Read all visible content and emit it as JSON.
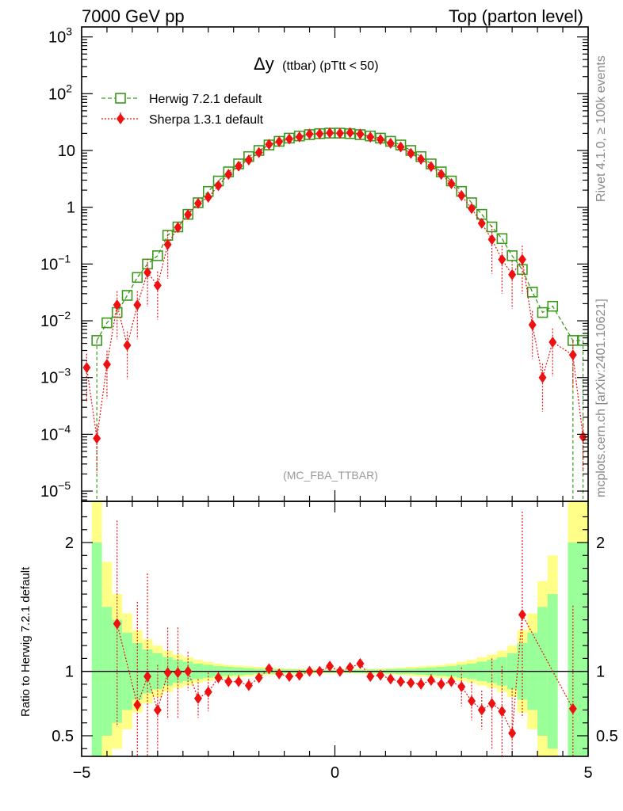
{
  "header": {
    "left": "7000 GeV pp",
    "right": "Top (parton level)"
  },
  "side_labels": {
    "rivet": "Rivet 4.1.0, ≥ 100k events",
    "mcplots": "mcplots.cern.ch [arXiv:2401.10621]"
  },
  "plot_title": {
    "main": "Δy",
    "sub": "(ttbar) (pTtt < 50)"
  },
  "analysis_label": "(MC_FBA_TTBAR)",
  "ratio_ylabel": "Ratio to Herwig 7.2.1 default",
  "legend": [
    {
      "name": "Herwig 7.2.1 default",
      "color": "#3a9a1c",
      "marker": "open-square",
      "style": "dashed"
    },
    {
      "name": "Sherpa 1.3.1 default",
      "color": "#ee1111",
      "marker": "diamond",
      "style": "dotted"
    }
  ],
  "colors": {
    "herwig": "#3a9a1c",
    "sherpa": "#ee1111",
    "band_inner": "#99ff99",
    "band_outer": "#ffff88"
  },
  "chart_data": [
    {
      "type": "line",
      "panel": "main",
      "title": "Δy (ttbar) (pTtt < 50)",
      "xlabel": "",
      "ylabel": "",
      "xlim": [
        -5,
        5
      ],
      "ylim": [
        6.6e-06,
        1500
      ],
      "yscale": "log",
      "x_ticks": [
        "-5",
        "0",
        "5"
      ],
      "y_ticks": [
        {
          "v": 1e-05,
          "label": "10",
          "exp": "−5"
        },
        {
          "v": 0.0001,
          "label": "10",
          "exp": "−4"
        },
        {
          "v": 0.001,
          "label": "10",
          "exp": "−3"
        },
        {
          "v": 0.01,
          "label": "10",
          "exp": "−2"
        },
        {
          "v": 0.1,
          "label": "10",
          "exp": "−1"
        },
        {
          "v": 1,
          "label": "1",
          "exp": ""
        },
        {
          "v": 10,
          "label": "10",
          "exp": ""
        },
        {
          "v": 100,
          "label": "10",
          "exp": "2"
        },
        {
          "v": 1000,
          "label": "10",
          "exp": "3"
        }
      ],
      "series": [
        {
          "name": "Herwig 7.2.1 default",
          "x": [
            -4.7,
            -4.5,
            -4.3,
            -4.1,
            -3.9,
            -3.7,
            -3.5,
            -3.3,
            -3.1,
            -2.9,
            -2.7,
            -2.5,
            -2.3,
            -2.1,
            -1.9,
            -1.7,
            -1.5,
            -1.3,
            -1.1,
            -0.9,
            -0.7,
            -0.5,
            -0.3,
            -0.1,
            0.1,
            0.3,
            0.5,
            0.7,
            0.9,
            1.1,
            1.3,
            1.5,
            1.7,
            1.9,
            2.1,
            2.3,
            2.5,
            2.7,
            2.9,
            3.1,
            3.3,
            3.5,
            3.7,
            3.9,
            4.1,
            4.3,
            4.7,
            4.9
          ],
          "values": [
            0.0045,
            0.0092,
            0.014,
            0.028,
            0.058,
            0.1,
            0.14,
            0.32,
            0.45,
            0.75,
            1.2,
            1.9,
            2.9,
            4.2,
            5.8,
            7.8,
            10,
            12.5,
            14.5,
            16.5,
            18,
            19,
            19.8,
            20.2,
            20.2,
            19.8,
            19,
            18,
            16.5,
            14.5,
            12.5,
            10,
            7.8,
            5.8,
            4.2,
            2.9,
            1.9,
            1.2,
            0.75,
            0.45,
            0.28,
            0.14,
            0.08,
            0.032,
            0.014,
            0.018,
            0.0045,
            0.0045
          ]
        },
        {
          "name": "Sherpa 1.3.1 default",
          "x": [
            -4.9,
            -4.7,
            -4.5,
            -4.3,
            -4.1,
            -3.9,
            -3.7,
            -3.5,
            -3.3,
            -3.1,
            -2.9,
            -2.7,
            -2.5,
            -2.3,
            -2.1,
            -1.9,
            -1.7,
            -1.5,
            -1.3,
            -1.1,
            -0.9,
            -0.7,
            -0.5,
            -0.3,
            -0.1,
            0.1,
            0.3,
            0.5,
            0.7,
            0.9,
            1.1,
            1.3,
            1.5,
            1.7,
            1.9,
            2.1,
            2.3,
            2.5,
            2.7,
            2.9,
            3.1,
            3.3,
            3.5,
            3.7,
            3.9,
            4.1,
            4.3,
            4.7,
            4.9
          ],
          "values": [
            0.0015,
            8.5e-05,
            0.0017,
            0.019,
            0.0037,
            0.019,
            0.071,
            0.042,
            0.22,
            0.44,
            0.74,
            1.17,
            1.5,
            2.4,
            3.8,
            5.3,
            6.8,
            9.2,
            12.8,
            14.3,
            15.9,
            17.3,
            19.5,
            19.7,
            20.4,
            20.1,
            20.6,
            19.5,
            17.2,
            15.6,
            13.4,
            11.5,
            8.9,
            7.0,
            5.2,
            3.8,
            2.6,
            1.6,
            0.95,
            0.52,
            0.27,
            0.12,
            0.065,
            0.12,
            0.0085,
            0.001,
            0.0042,
            0.0025,
            9e-05
          ]
        }
      ]
    },
    {
      "type": "line",
      "panel": "ratio",
      "title": "",
      "xlabel": "",
      "ylabel": "Ratio to Herwig 7.2.1 default",
      "xlim": [
        -5,
        5
      ],
      "ylim": [
        0.34,
        2.32
      ],
      "yscale": "linear",
      "x_ticks": [
        "−5",
        "0",
        "5"
      ],
      "y_ticks": [
        "0.5",
        "1",
        "2"
      ],
      "reference": 1,
      "band_edges": [
        -4.8,
        -4.6,
        -4.4,
        -4.2,
        -4.0,
        -3.8,
        -3.6,
        -3.4,
        -3.2,
        -3.0,
        -2.8,
        -2.6,
        -2.4,
        -2.2,
        -2.0,
        -1.8,
        -1.6,
        -1.4,
        -1.2,
        -1.0,
        -0.8,
        -0.6,
        -0.4,
        -0.2,
        0.0,
        0.2,
        0.4,
        0.6,
        0.8,
        1.0,
        1.2,
        1.4,
        1.6,
        1.8,
        2.0,
        2.2,
        2.4,
        2.6,
        2.8,
        3.0,
        3.2,
        3.4,
        3.6,
        3.8,
        4.0,
        4.2,
        4.4,
        4.6,
        4.8,
        5.0
      ],
      "band_inner_halfwidth": [
        1.0,
        0.5,
        0.4,
        0.3,
        0.22,
        0.17,
        0.14,
        0.11,
        0.09,
        0.075,
        0.06,
        0.05,
        0.04,
        0.035,
        0.03,
        0.025,
        0.02,
        0.02,
        0.018,
        0.015,
        0.015,
        0.013,
        0.012,
        0.012,
        0.012,
        0.012,
        0.013,
        0.015,
        0.015,
        0.018,
        0.02,
        0.02,
        0.025,
        0.03,
        0.035,
        0.04,
        0.05,
        0.06,
        0.075,
        0.09,
        0.11,
        0.14,
        0.22,
        0.3,
        0.5,
        0.6,
        0.0,
        1.0,
        1.0
      ],
      "band_outer_halfwidth": [
        1.4,
        0.85,
        0.6,
        0.45,
        0.32,
        0.25,
        0.2,
        0.16,
        0.13,
        0.11,
        0.09,
        0.075,
        0.06,
        0.05,
        0.045,
        0.04,
        0.035,
        0.03,
        0.025,
        0.022,
        0.02,
        0.018,
        0.016,
        0.016,
        0.016,
        0.016,
        0.018,
        0.02,
        0.022,
        0.025,
        0.03,
        0.035,
        0.04,
        0.045,
        0.05,
        0.06,
        0.075,
        0.09,
        0.11,
        0.13,
        0.16,
        0.2,
        0.32,
        0.45,
        0.7,
        0.9,
        0.0,
        1.4,
        1.4
      ],
      "series": [
        {
          "name": "Sherpa 1.3.1 default / Herwig",
          "x": [
            -4.3,
            -3.9,
            -3.7,
            -3.5,
            -3.3,
            -3.1,
            -2.9,
            -2.7,
            -2.5,
            -2.3,
            -2.1,
            -1.9,
            -1.7,
            -1.5,
            -1.3,
            -1.1,
            -0.9,
            -0.7,
            -0.5,
            -0.3,
            -0.1,
            0.1,
            0.3,
            0.5,
            0.7,
            0.9,
            1.1,
            1.3,
            1.5,
            1.7,
            1.9,
            2.1,
            2.3,
            2.5,
            2.7,
            2.9,
            3.1,
            3.3,
            3.5,
            3.7,
            4.7
          ],
          "values": [
            1.37,
            0.74,
            0.96,
            0.7,
            0.99,
            0.99,
            1.0,
            0.79,
            0.84,
            0.95,
            0.92,
            0.92,
            0.89,
            0.95,
            1.02,
            0.98,
            0.96,
            0.97,
            1.0,
            1.0,
            1.04,
            1.0,
            1.03,
            1.06,
            0.96,
            0.97,
            0.94,
            0.92,
            0.91,
            0.9,
            0.93,
            0.9,
            0.92,
            0.88,
            0.77,
            0.7,
            0.75,
            0.69,
            0.52,
            1.44,
            0.71
          ]
        }
      ]
    }
  ]
}
